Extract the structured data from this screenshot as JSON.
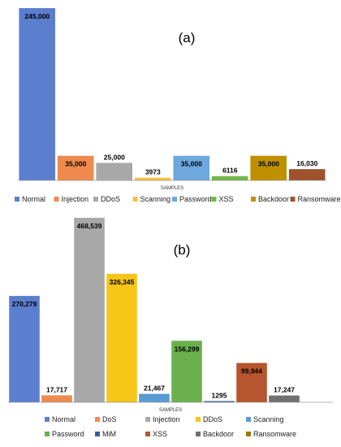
{
  "chart_data": [
    {
      "type": "bar",
      "panel_label": "(a)",
      "xlabel": "SAMPLES",
      "legend_position": "bottom",
      "grid": false,
      "categories": [
        "Normal",
        "Injection",
        "DDoS",
        "Scanning",
        "Password",
        "XSS",
        "Backdoor",
        "Ransomware"
      ],
      "values": [
        245000,
        35000,
        25000,
        3973,
        35000,
        6116,
        35000,
        16030
      ],
      "value_labels": [
        "245,000",
        "35,000",
        "25,000",
        "3973",
        "35,000",
        "6116",
        "35,000",
        "16,030"
      ],
      "colors": [
        "#5B7FCE",
        "#EE8A4E",
        "#A8A8A8",
        "#F5C242",
        "#6FA8DC",
        "#70B84A",
        "#BF9000",
        "#A0522D"
      ],
      "ylim": [
        0,
        245000
      ]
    },
    {
      "type": "bar",
      "panel_label": "(b)",
      "xlabel": "SAMPLES",
      "legend_position": "bottom",
      "grid": false,
      "categories": [
        "Normal",
        "DoS",
        "Injection",
        "DDoS",
        "Scanning",
        "Password",
        "MiM",
        "XSS",
        "Backdoor",
        "Ransomware"
      ],
      "values": [
        270279,
        17717,
        468539,
        326345,
        21467,
        156299,
        1295,
        99944,
        17247,
        0
      ],
      "value_labels": [
        "270,279",
        "17,717",
        "468,539",
        "326,345",
        "21,467",
        "156,299",
        "1295",
        "99,944",
        "17,247",
        ""
      ],
      "colors": [
        "#5B7FCE",
        "#EE8A4E",
        "#A8A8A8",
        "#F5C518",
        "#5B9BD5",
        "#6AB04C",
        "#3D5A99",
        "#B5562E",
        "#707070",
        "#9C7A00"
      ],
      "ylim": [
        0,
        468539
      ]
    }
  ]
}
